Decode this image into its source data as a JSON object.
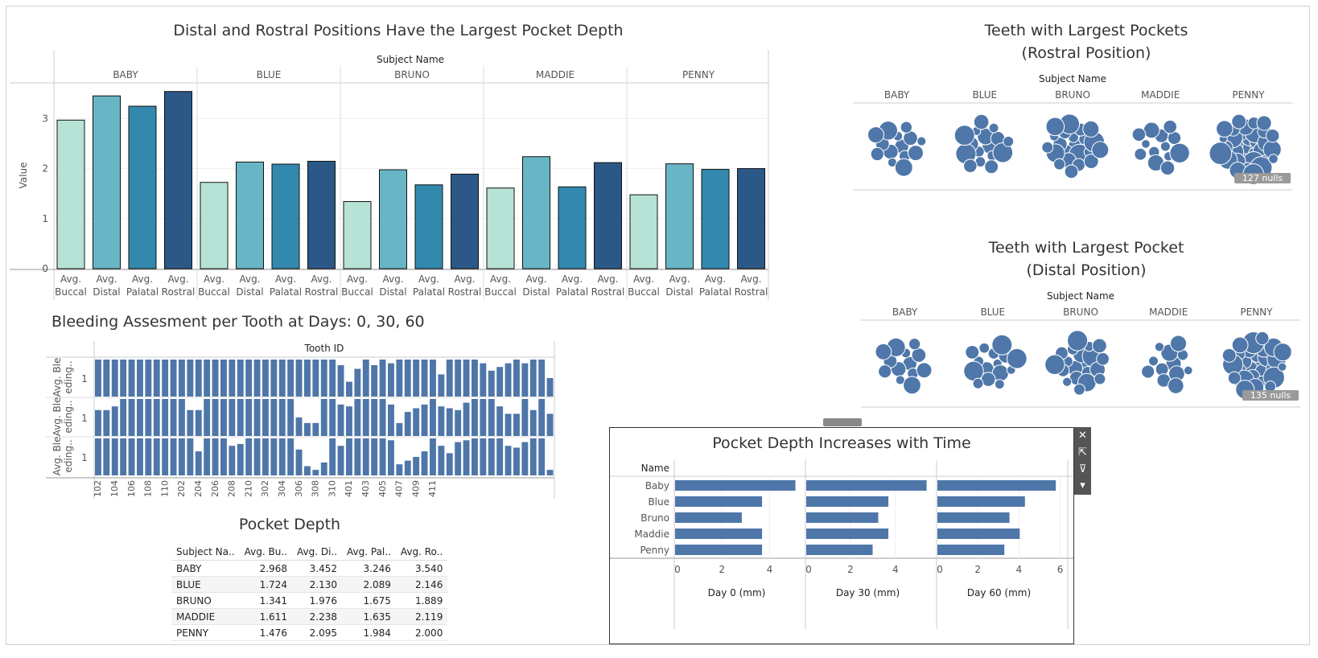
{
  "colors": {
    "buccal": "#b7e3d6",
    "distal": "#68b6c5",
    "palatal": "#3389ad",
    "rostral": "#2b5887",
    "bubble": "#4f77a9",
    "bar": "#4f76a9"
  },
  "chart_data": [
    {
      "type": "bar",
      "title": "Distal and Rostral Positions Have the Largest Pocket Depth",
      "header": "Subject Name",
      "ylabel": "Value",
      "ylim": [
        0,
        3.6
      ],
      "yticks": [
        "0",
        "1",
        "2",
        "3"
      ],
      "groups": [
        "BABY",
        "BLUE",
        "BRUNO",
        "MADDIE",
        "PENNY"
      ],
      "categories": [
        [
          "Avg.",
          "Buccal"
        ],
        [
          "Avg.",
          "Distal"
        ],
        [
          "Avg.",
          "Palatal"
        ],
        [
          "Avg.",
          "Rostral"
        ]
      ],
      "values": [
        [
          2.968,
          3.452,
          3.246,
          3.54
        ],
        [
          1.724,
          2.13,
          2.089,
          2.146
        ],
        [
          1.341,
          1.976,
          1.675,
          1.889
        ],
        [
          1.611,
          2.238,
          1.635,
          2.119
        ],
        [
          1.476,
          2.095,
          1.984,
          2.0
        ]
      ]
    },
    {
      "type": "bar",
      "title": "Bleeding Assesment per Tooth at Days: 0, 30, 60",
      "header": "Tooth ID",
      "ylabel_rows": [
        [
          "Avg. Ble",
          "eding.."
        ],
        [
          "Avg. Ble",
          "eding.."
        ],
        [
          "Avg. Ble",
          "eding.."
        ]
      ],
      "ytick": "1",
      "ticks": [
        "102",
        "104",
        "106",
        "108",
        "110",
        "202",
        "204",
        "206",
        "208",
        "210",
        "302",
        "304",
        "306",
        "308",
        "310",
        "401",
        "403",
        "405",
        "407",
        "409",
        "411"
      ],
      "rows": [
        [
          1,
          1,
          1,
          1,
          1,
          1,
          1,
          1,
          1,
          1,
          1,
          1,
          1,
          1,
          1,
          1,
          1,
          1,
          1,
          1,
          1,
          1,
          1,
          1,
          1,
          1,
          1,
          1,
          1,
          0.85,
          0.4,
          0.75,
          1,
          0.85,
          1,
          0.9,
          1,
          1,
          1,
          1,
          1,
          0.6,
          1,
          1,
          1,
          1,
          0.9,
          0.7,
          0.8,
          0.9,
          1,
          0.9,
          1,
          1,
          0.5
        ],
        [
          0.7,
          0.7,
          0.8,
          1,
          1,
          1,
          1,
          1,
          1,
          1,
          1,
          0.7,
          0.7,
          1,
          1,
          1,
          1,
          1,
          1,
          1,
          1,
          1,
          1,
          1,
          0.5,
          0.35,
          0.35,
          1,
          1,
          0.85,
          0.8,
          1,
          1,
          1,
          1,
          0.85,
          0.35,
          0.65,
          0.75,
          0.85,
          1,
          0.8,
          0.75,
          0.7,
          0.9,
          1,
          1,
          1,
          0.8,
          0.6,
          0.6,
          1,
          0.7,
          1,
          0.6
        ],
        [
          1,
          1,
          1,
          1,
          1,
          1,
          1,
          1,
          1,
          1,
          1,
          1,
          0.65,
          1,
          1,
          1,
          0.8,
          0.85,
          1,
          1,
          1,
          1,
          1,
          1,
          0.7,
          0.25,
          0.15,
          0.35,
          1,
          0.8,
          1,
          1,
          1,
          1,
          1,
          0.95,
          0.3,
          0.4,
          0.5,
          0.65,
          1,
          0.8,
          0.6,
          0.9,
          0.95,
          1,
          1,
          1,
          1,
          0.8,
          0.75,
          0.9,
          1,
          1,
          0.15
        ]
      ]
    },
    {
      "type": "table",
      "title": "Pocket Depth",
      "columns": [
        "Subject Na..",
        "Avg. Bu..",
        "Avg. Di..",
        "Avg. Pal..",
        "Avg. Ro.."
      ],
      "rows": [
        [
          "BABY",
          "2.968",
          "3.452",
          "3.246",
          "3.540"
        ],
        [
          "BLUE",
          "1.724",
          "2.130",
          "2.089",
          "2.146"
        ],
        [
          "BRUNO",
          "1.341",
          "1.976",
          "1.675",
          "1.889"
        ],
        [
          "MADDIE",
          "1.611",
          "2.238",
          "1.635",
          "2.119"
        ],
        [
          "PENNY",
          "1.476",
          "2.095",
          "1.984",
          "2.000"
        ]
      ]
    },
    {
      "type": "scatter",
      "title": [
        "Teeth with Largest Pockets",
        "(Rostral Position)"
      ],
      "header": "Subject Name",
      "groups": [
        "BABY",
        "BLUE",
        "BRUNO",
        "MADDIE",
        "PENNY"
      ],
      "nulls": "127 nulls",
      "counts": [
        14,
        16,
        22,
        13,
        34
      ]
    },
    {
      "type": "scatter",
      "title": [
        "Teeth with Largest Pocket",
        "(Distal Position)"
      ],
      "header": "Subject Name",
      "groups": [
        "BABY",
        "BLUE",
        "BRUNO",
        "MADDIE",
        "PENNY"
      ],
      "nulls": "135 nulls",
      "counts": [
        13,
        15,
        20,
        12,
        28
      ]
    },
    {
      "type": "bar",
      "title": "Pocket Depth Increases with Time",
      "row_header": "Name",
      "categories": [
        "Baby",
        "Blue",
        "Bruno",
        "Maddie",
        "Penny"
      ],
      "panels": [
        {
          "xlabel": "Day 0 (mm)",
          "ticks": [
            "0",
            "2",
            "4"
          ],
          "xlim": [
            0,
            5.1
          ],
          "values": [
            5.05,
            3.65,
            2.8,
            3.65,
            3.65
          ]
        },
        {
          "xlabel": "Day 30 (mm)",
          "ticks": [
            "0",
            "2",
            "4"
          ],
          "xlim": [
            0,
            5.4
          ],
          "values": [
            5.35,
            3.65,
            3.2,
            3.65,
            2.95
          ]
        },
        {
          "xlabel": "Day 60 (mm)",
          "ticks": [
            "0",
            "2",
            "4",
            "6"
          ],
          "xlim": [
            0,
            5.9
          ],
          "values": [
            5.75,
            4.25,
            3.5,
            4.0,
            3.25
          ]
        }
      ]
    }
  ],
  "toolbar": {
    "close": "✕",
    "open": "⇱",
    "filter": "⊽",
    "more": "▾"
  }
}
